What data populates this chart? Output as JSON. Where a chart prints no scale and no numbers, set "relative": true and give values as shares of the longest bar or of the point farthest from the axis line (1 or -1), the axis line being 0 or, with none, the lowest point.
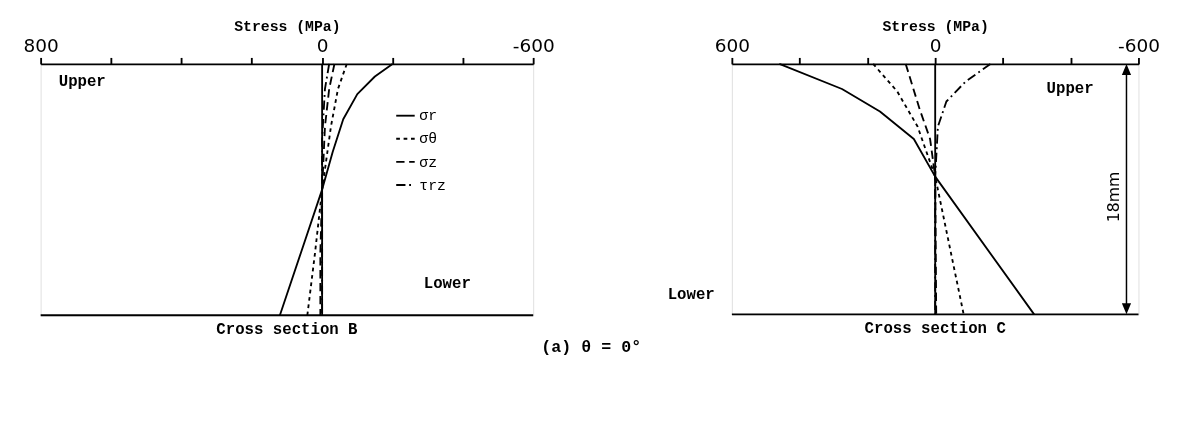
{
  "chart_data": [
    {
      "type": "line",
      "title": "Cross section B",
      "xlabel": "Stress (MPa)",
      "relative": true,
      "xlim": [
        800,
        -600
      ],
      "xticks": [
        800,
        {
          "value": 600,
          "label": null
        },
        {
          "value": 400,
          "label": null
        },
        {
          "value": 200,
          "label": null
        },
        0,
        {
          "value": -200,
          "label": null
        },
        {
          "value": -400,
          "label": null
        },
        -600
      ],
      "grid": false,
      "legend": "top right",
      "ref_lines": [
        {
          "axis": "x",
          "value": 0,
          "color": "#000000",
          "line_style": "solid"
        }
      ],
      "annotations": [
        "Upper",
        "Lower",
        "(a)  θ = 0°"
      ],
      "series": [
        {
          "name": "σr",
          "color": "#000000",
          "line_style": "solid",
          "x": [
            -200,
            -150,
            -100,
            -60,
            -30,
            0,
            60,
            120
          ],
          "values": [
            1,
            0.95,
            0.88,
            0.78,
            0.65,
            0.5,
            0.25,
            0
          ]
        },
        {
          "name": "σθ",
          "color": "#000000",
          "line_style": "dotted",
          "x": [
            -70,
            -45,
            -25,
            -10,
            0,
            20,
            42
          ],
          "values": [
            1,
            0.9,
            0.75,
            0.6,
            0.5,
            0.25,
            0
          ]
        },
        {
          "name": "σz",
          "color": "#000000",
          "line_style": "dashed",
          "x": [
            -35,
            -20,
            -8,
            0,
            5,
            5
          ],
          "values": [
            1,
            0.9,
            0.75,
            0.5,
            0.25,
            0
          ]
        },
        {
          "name": "τrz",
          "color": "#000000",
          "line_style": "dashdot",
          "x": [
            -20,
            -8,
            0,
            0,
            0
          ],
          "values": [
            1,
            0.9,
            0.7,
            0.5,
            0
          ]
        }
      ]
    },
    {
      "type": "line",
      "title": "Cross section C",
      "xlabel": "Stress (MPa)",
      "relative": true,
      "xlim": [
        600,
        -600
      ],
      "xticks": [
        600,
        {
          "value": 400,
          "label": null
        },
        {
          "value": 200,
          "label": null
        },
        0,
        {
          "value": -200,
          "label": null
        },
        {
          "value": -400,
          "label": null
        },
        -600
      ],
      "grid": false,
      "ref_lines": [
        {
          "axis": "x",
          "value": 0,
          "color": "#000000",
          "line_style": "solid"
        }
      ],
      "annotations": [
        "Upper",
        "Lower",
        "18mm"
      ],
      "series": [
        {
          "color": "#000000",
          "line_style": "solid",
          "x": [
            460,
            275,
            163,
            63,
            0,
            -292
          ],
          "values": [
            1,
            0.9,
            0.81,
            0.7,
            0.55,
            0
          ]
        },
        {
          "color": "#000000",
          "line_style": "dotted",
          "x": [
            183,
            112,
            52,
            0,
            -84
          ],
          "values": [
            1,
            0.89,
            0.75,
            0.55,
            0
          ]
        },
        {
          "color": "#000000",
          "line_style": "dashed",
          "x": [
            87,
            46,
            15,
            0,
            -3
          ],
          "values": [
            1,
            0.82,
            0.7,
            0.55,
            0
          ]
        },
        {
          "color": "#000000",
          "line_style": "dashdot",
          "x": [
            -163,
            -90,
            -33,
            -8,
            0,
            0
          ],
          "values": [
            1,
            0.93,
            0.85,
            0.75,
            0.55,
            0
          ]
        }
      ]
    }
  ]
}
